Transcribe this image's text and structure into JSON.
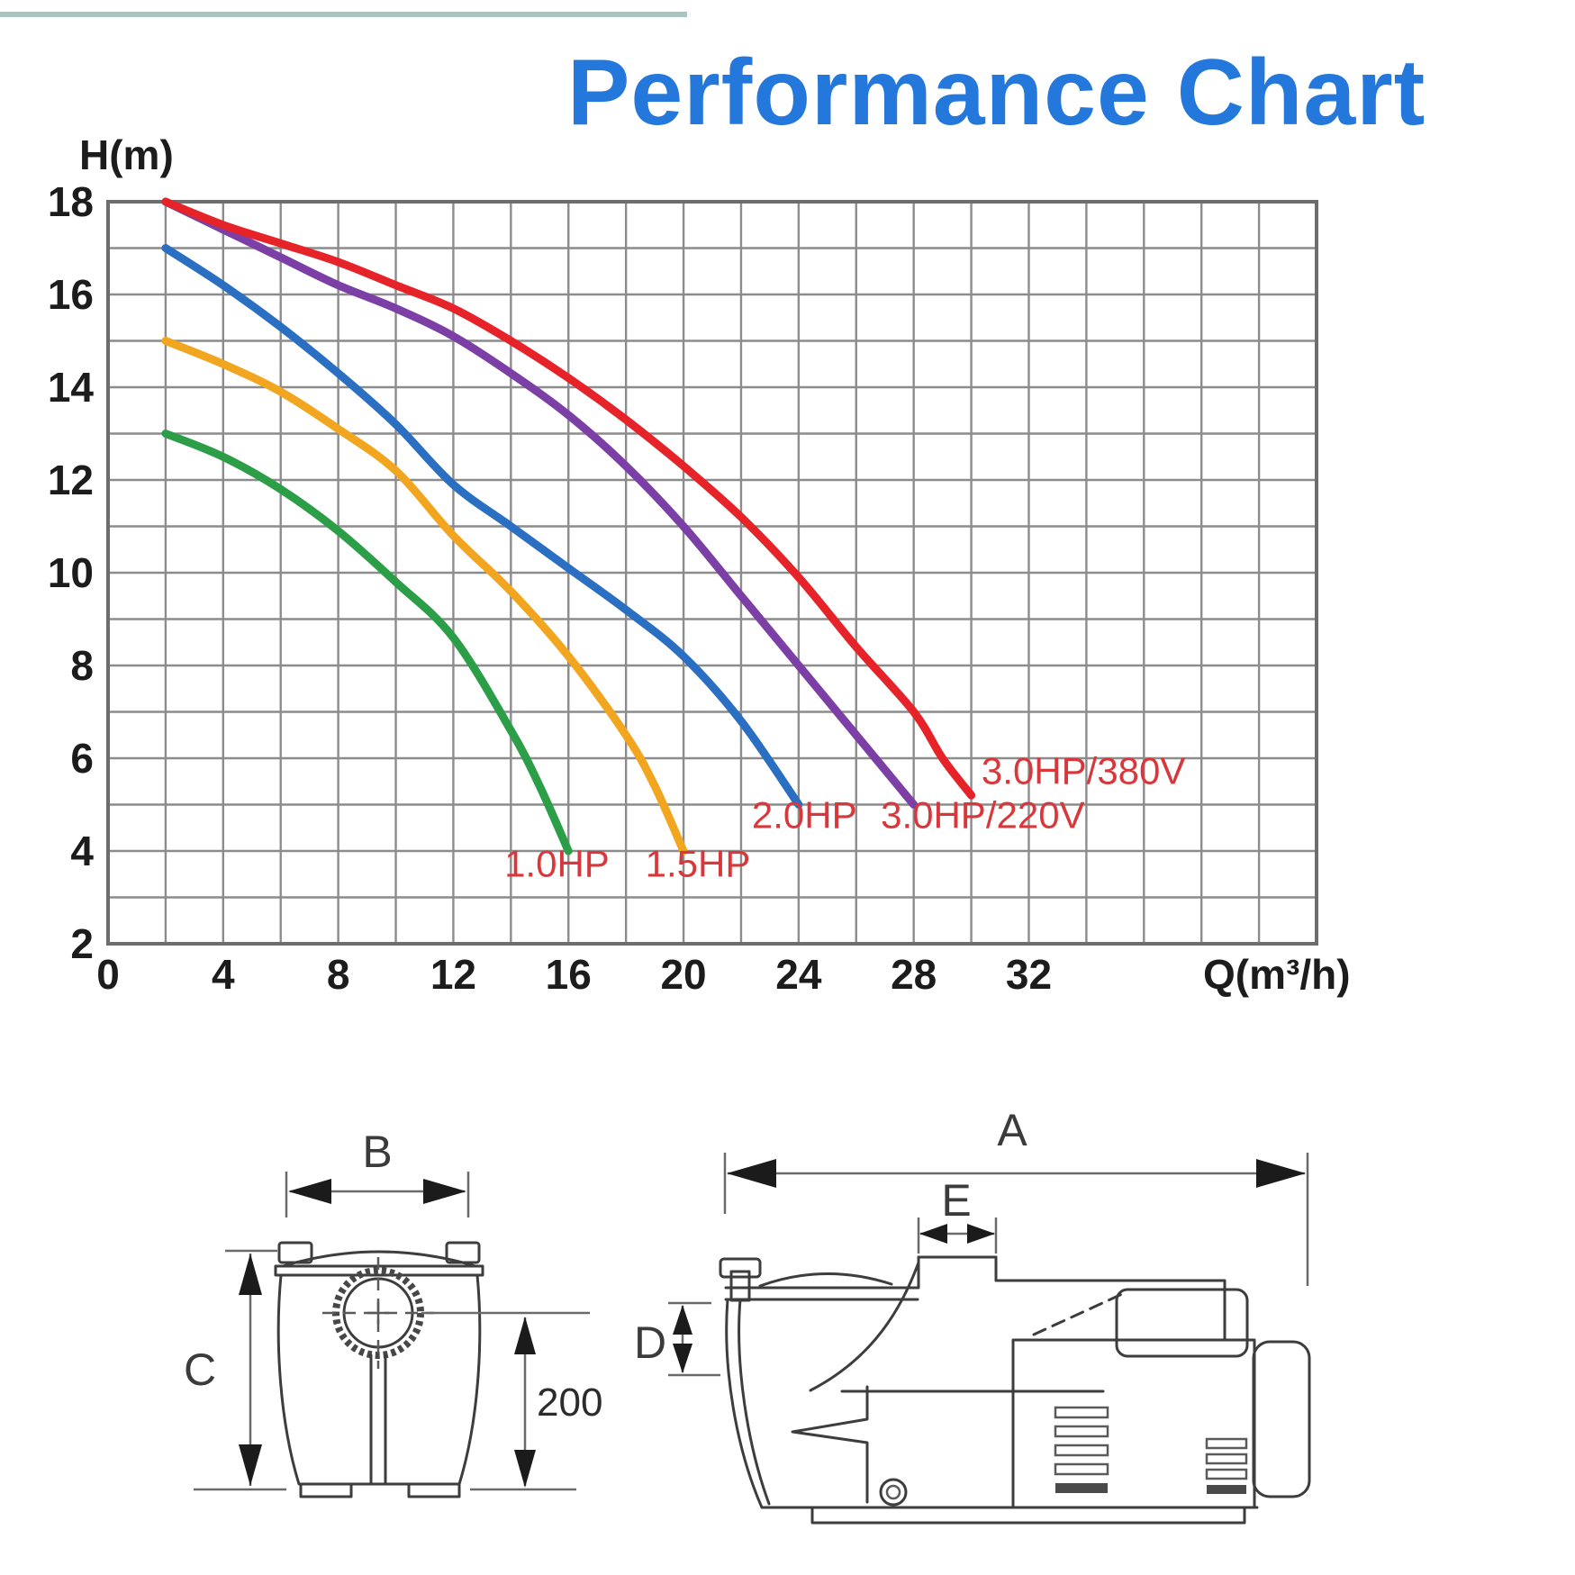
{
  "page": {
    "title": "Performance Chart",
    "title_color": "#2478DC",
    "top_rule_color": "#A9C4C1"
  },
  "chart_data": {
    "type": "line",
    "title": "Performance Chart",
    "xlabel": "Q(m³/h)",
    "ylabel": "H(m)",
    "xlim": [
      0,
      42
    ],
    "ylim": [
      2,
      18
    ],
    "x_gridline_step": 2,
    "y_gridline_step": 1,
    "x_ticks": [
      "0",
      "4",
      "8",
      "12",
      "16",
      "20",
      "24",
      "28",
      "32"
    ],
    "x_tick_values": [
      0,
      4,
      8,
      12,
      16,
      20,
      24,
      28,
      32
    ],
    "y_ticks": [
      "18",
      "16",
      "14",
      "12",
      "10",
      "8",
      "6",
      "4",
      "2"
    ],
    "y_tick_values": [
      18,
      16,
      14,
      12,
      10,
      8,
      6,
      4,
      2
    ],
    "grid": true,
    "legend_position": "inline-labels",
    "grid_color": "#8C8C8C",
    "border_color": "#6D6D6D",
    "axis_text_color": "#1C1C1C",
    "label_color": "#D8383B",
    "series": [
      {
        "name": "1.0HP",
        "color": "#2D9E48",
        "label_anchor": {
          "q": 15.6,
          "h": 3.45
        },
        "points": [
          [
            2,
            13
          ],
          [
            4,
            12.5
          ],
          [
            6,
            11.8
          ],
          [
            8,
            10.9
          ],
          [
            10,
            9.8
          ],
          [
            12,
            8.6
          ],
          [
            14,
            6.6
          ],
          [
            15,
            5.4
          ],
          [
            16,
            4.0
          ]
        ]
      },
      {
        "name": "1.5HP",
        "color": "#F2A51F",
        "label_anchor": {
          "q": 20.5,
          "h": 3.45
        },
        "points": [
          [
            2,
            15
          ],
          [
            4,
            14.5
          ],
          [
            6,
            13.9
          ],
          [
            8,
            13.1
          ],
          [
            10,
            12.2
          ],
          [
            12,
            10.8
          ],
          [
            14,
            9.6
          ],
          [
            16,
            8.2
          ],
          [
            18,
            6.5
          ],
          [
            19,
            5.4
          ],
          [
            20,
            4.0
          ]
        ]
      },
      {
        "name": "2.0HP",
        "color": "#2B6FC3",
        "label_anchor": {
          "q": 24.2,
          "h": 4.5
        },
        "points": [
          [
            2,
            17
          ],
          [
            4,
            16.2
          ],
          [
            6,
            15.3
          ],
          [
            8,
            14.3
          ],
          [
            10,
            13.2
          ],
          [
            12,
            11.9
          ],
          [
            14,
            11.0
          ],
          [
            16,
            10.1
          ],
          [
            18,
            9.2
          ],
          [
            20,
            8.2
          ],
          [
            22,
            6.8
          ],
          [
            24,
            5.0
          ]
        ]
      },
      {
        "name": "3.0HP/220V",
        "color": "#7B3FA5",
        "label_anchor": {
          "q": 30.4,
          "h": 4.5
        },
        "points": [
          [
            2,
            18
          ],
          [
            4,
            17.4
          ],
          [
            6,
            16.8
          ],
          [
            8,
            16.2
          ],
          [
            10,
            15.7
          ],
          [
            12,
            15.1
          ],
          [
            14,
            14.3
          ],
          [
            16,
            13.4
          ],
          [
            18,
            12.3
          ],
          [
            20,
            11.0
          ],
          [
            22,
            9.5
          ],
          [
            24,
            8.0
          ],
          [
            26,
            6.5
          ],
          [
            28,
            5.0
          ]
        ]
      },
      {
        "name": "3.0HP/380V",
        "color": "#E62328",
        "label_anchor": {
          "q": 33.9,
          "h": 5.45
        },
        "points": [
          [
            2,
            18
          ],
          [
            4,
            17.5
          ],
          [
            6,
            17.1
          ],
          [
            8,
            16.7
          ],
          [
            10,
            16.2
          ],
          [
            12,
            15.7
          ],
          [
            14,
            15.0
          ],
          [
            16,
            14.2
          ],
          [
            18,
            13.3
          ],
          [
            20,
            12.3
          ],
          [
            22,
            11.2
          ],
          [
            24,
            9.9
          ],
          [
            26,
            8.4
          ],
          [
            28,
            7.0
          ],
          [
            29,
            6.0
          ],
          [
            30,
            5.2
          ]
        ]
      }
    ]
  },
  "drawings": {
    "front_view": {
      "dim_width": "B",
      "dim_height": "C",
      "dim_port_height": "200"
    },
    "side_view": {
      "dim_length": "A",
      "dim_port_width": "E",
      "dim_inlet": "D"
    }
  }
}
